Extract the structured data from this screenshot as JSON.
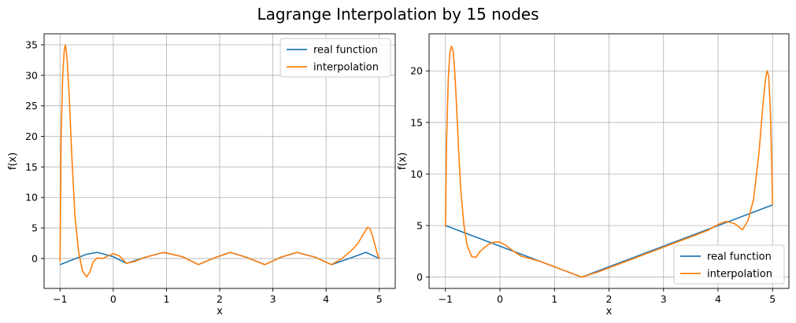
{
  "title": "Lagrange Interpolation by 15 nodes",
  "colors": {
    "real": "#1f77b4",
    "interp": "#ff7f0e",
    "grid": "#b0b0b0"
  },
  "chart_data": [
    {
      "type": "line",
      "xlabel": "x",
      "ylabel": "f(x)",
      "xlim": [
        -1.3,
        5.3
      ],
      "ylim": [
        -4.9,
        36.8
      ],
      "xticks": [
        -1,
        0,
        1,
        2,
        3,
        4,
        5
      ],
      "yticks": [
        0,
        5,
        10,
        15,
        20,
        25,
        30,
        35
      ],
      "grid": true,
      "legend_position": "top-right",
      "series": [
        {
          "name": "real function",
          "x": [
            -1,
            -0.5,
            -0.3,
            0,
            0.25,
            0.6,
            0.95,
            1.3,
            1.6,
            1.9,
            2.2,
            2.5,
            2.85,
            3.15,
            3.45,
            3.8,
            4.1,
            4.4,
            4.75,
            5
          ],
          "y": [
            -1,
            0.7,
            1.0,
            0.3,
            -0.8,
            0.2,
            1.0,
            0.3,
            -1.0,
            0.1,
            1.0,
            0.2,
            -1.0,
            0.2,
            1.0,
            0.2,
            -1.0,
            -0.1,
            1.0,
            0
          ]
        },
        {
          "name": "interpolation",
          "x": [
            -1,
            -0.98,
            -0.95,
            -0.92,
            -0.9,
            -0.87,
            -0.83,
            -0.78,
            -0.72,
            -0.65,
            -0.58,
            -0.5,
            -0.44,
            -0.38,
            -0.3,
            -0.2,
            -0.1,
            0,
            0.12,
            0.25,
            0.4,
            0.6,
            0.95,
            1.3,
            1.6,
            1.9,
            2.2,
            2.5,
            2.85,
            3.15,
            3.45,
            3.8,
            4.1,
            4.3,
            4.5,
            4.6,
            4.7,
            4.78,
            4.83,
            4.88,
            4.93,
            4.97,
            5
          ],
          "y": [
            -0.5,
            20,
            30,
            34.2,
            35,
            33,
            27,
            17,
            7,
            1,
            -2.0,
            -3.0,
            -2.2,
            -0.6,
            0.1,
            0.0,
            0.4,
            0.8,
            0.4,
            -0.8,
            -0.5,
            0.2,
            1.0,
            0.3,
            -1.0,
            0.1,
            1.0,
            0.2,
            -1.0,
            0.2,
            1.0,
            0.2,
            -1.0,
            0.0,
            1.5,
            2.5,
            4.0,
            5.1,
            4.8,
            3.5,
            1.8,
            0.6,
            0
          ]
        }
      ]
    },
    {
      "type": "line",
      "xlabel": "x",
      "ylabel": "f(x)",
      "xlim": [
        -1.3,
        5.3
      ],
      "ylim": [
        -1.1,
        23.6
      ],
      "xticks": [
        -1,
        0,
        1,
        2,
        3,
        4,
        5
      ],
      "yticks": [
        0,
        5,
        10,
        15,
        20
      ],
      "grid": true,
      "legend_position": "bottom-right",
      "series": [
        {
          "name": "real function",
          "x": [
            -1,
            1.5,
            5
          ],
          "y": [
            5,
            0,
            7
          ]
        },
        {
          "name": "interpolation",
          "x": [
            -1,
            -0.98,
            -0.95,
            -0.92,
            -0.89,
            -0.86,
            -0.83,
            -0.8,
            -0.76,
            -0.72,
            -0.66,
            -0.6,
            -0.52,
            -0.44,
            -0.38,
            -0.3,
            -0.2,
            -0.1,
            0,
            0.1,
            0.25,
            0.4,
            0.55,
            0.75,
            1.0,
            1.2,
            1.5,
            1.8,
            2.2,
            2.6,
            3.0,
            3.4,
            3.8,
            4.0,
            4.15,
            4.3,
            4.45,
            4.55,
            4.65,
            4.75,
            4.82,
            4.87,
            4.9,
            4.93,
            4.96,
            4.98,
            5
          ],
          "y": [
            4.9,
            13,
            19,
            21.7,
            22.4,
            22.0,
            20,
            17,
            12.5,
            8.5,
            5.0,
            3.0,
            2.0,
            1.9,
            2.4,
            2.8,
            3.2,
            3.4,
            3.4,
            3.1,
            2.5,
            2.0,
            1.8,
            1.5,
            1.0,
            0.6,
            0.0,
            0.5,
            1.3,
            2.1,
            2.9,
            3.7,
            4.5,
            5.1,
            5.4,
            5.2,
            4.6,
            5.5,
            7.5,
            12,
            16.5,
            19.2,
            20.0,
            19.5,
            16,
            12,
            7
          ]
        }
      ]
    }
  ]
}
